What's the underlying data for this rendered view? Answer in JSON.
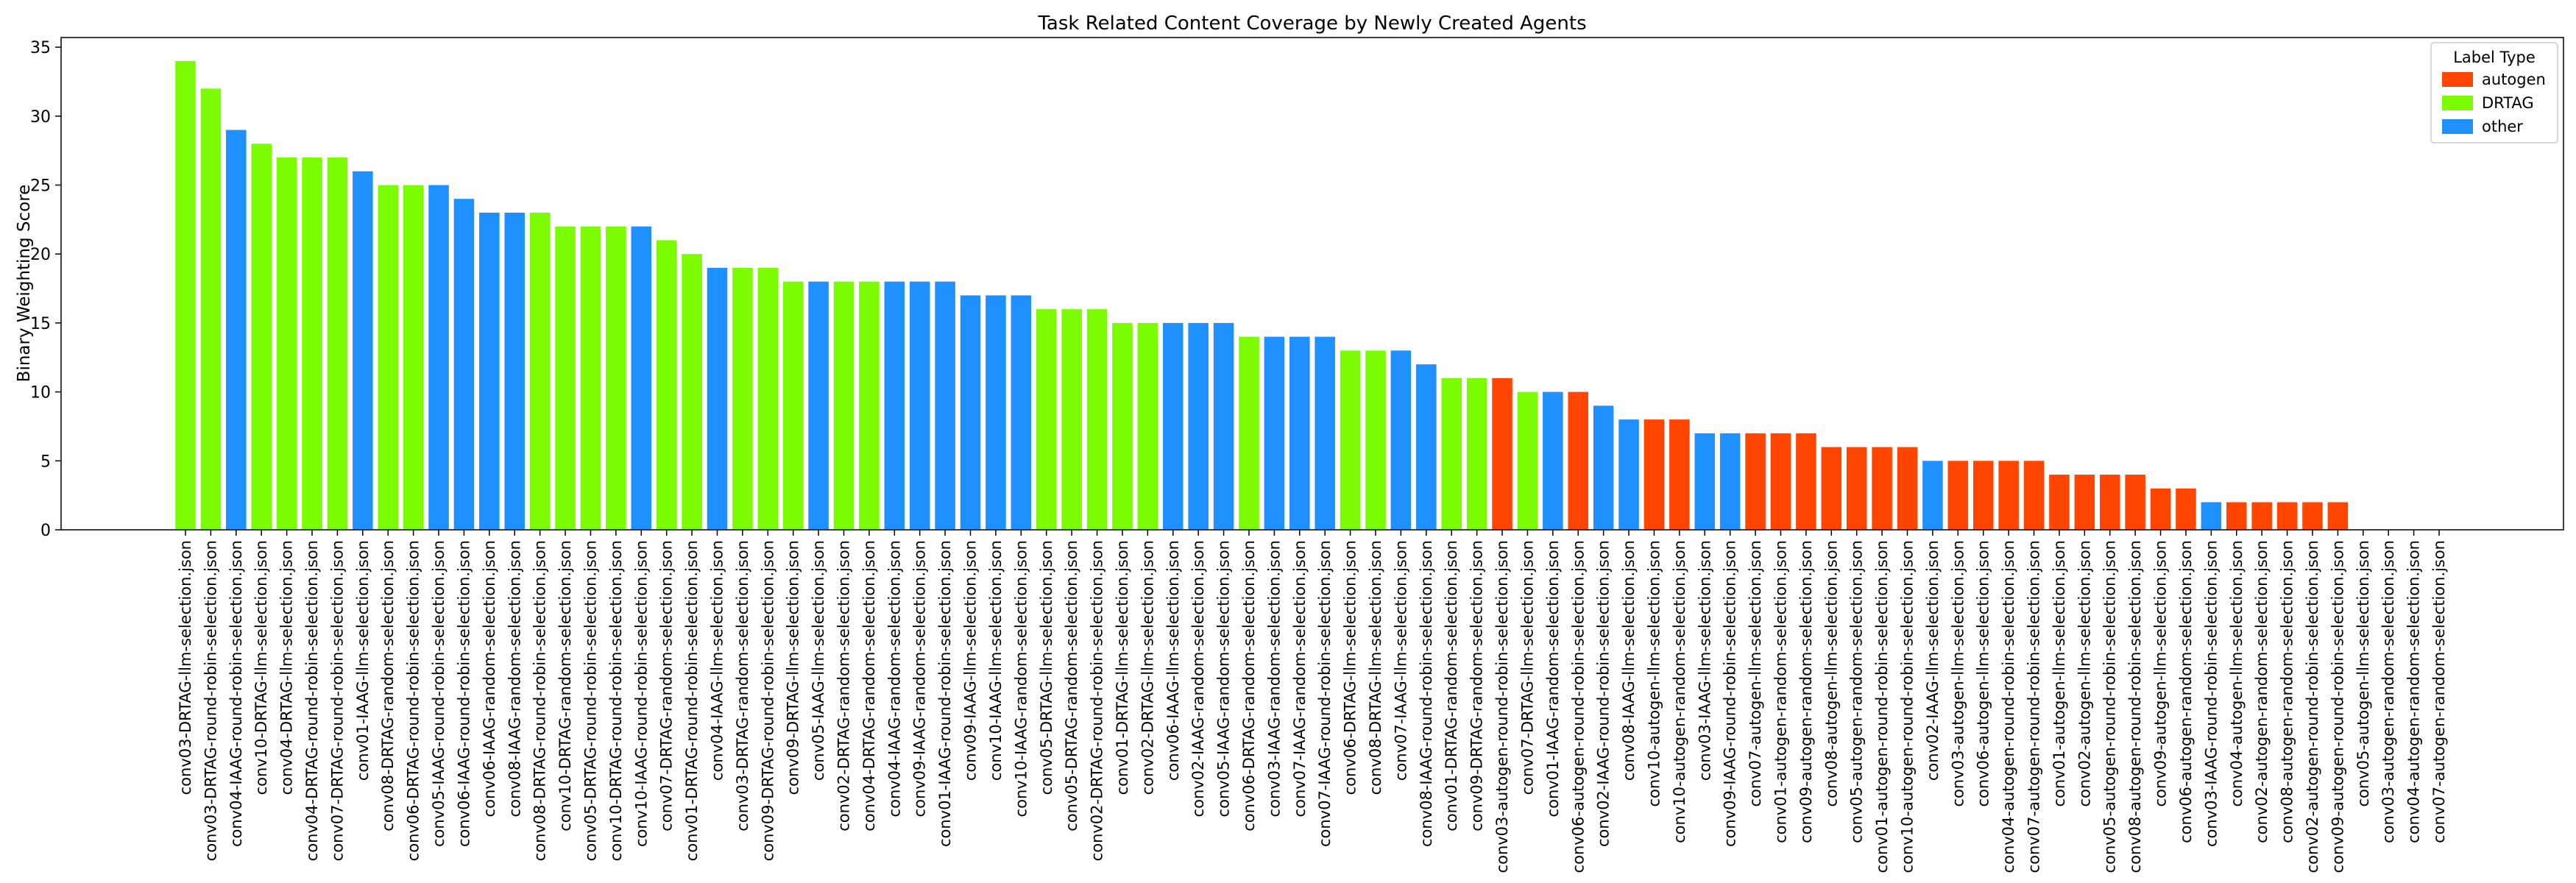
{
  "chart_data": {
    "type": "bar",
    "title": "Task Related Content Coverage by Newly Created Agents",
    "xlabel": "",
    "ylabel": "Binary Weighting Score",
    "ylim": [
      0,
      35.7
    ],
    "yticks": [
      0,
      5,
      10,
      15,
      20,
      25,
      30,
      35
    ],
    "grid": false,
    "legend": {
      "title": "Label Type",
      "placement": "top-right",
      "entries": [
        {
          "label": "autogen",
          "color": "#ff4500"
        },
        {
          "label": "DRTAG",
          "color": "#7cfc00"
        },
        {
          "label": "other",
          "color": "#1e90ff"
        }
      ]
    },
    "colors": {
      "autogen": "#ff4500",
      "DRTAG": "#7cfc00",
      "other": "#1e90ff"
    },
    "categories": [
      "conv03-DRTAG-llm-selection.json",
      "conv03-DRTAG-round-robin-selection.json",
      "conv04-IAAG-round-robin-selection.json",
      "conv10-DRTAG-llm-selection.json",
      "conv04-DRTAG-llm-selection.json",
      "conv04-DRTAG-round-robin-selection.json",
      "conv07-DRTAG-round-robin-selection.json",
      "conv01-IAAG-llm-selection.json",
      "conv08-DRTAG-random-selection.json",
      "conv06-DRTAG-round-robin-selection.json",
      "conv05-IAAG-round-robin-selection.json",
      "conv06-IAAG-round-robin-selection.json",
      "conv06-IAAG-random-selection.json",
      "conv08-IAAG-random-selection.json",
      "conv08-DRTAG-round-robin-selection.json",
      "conv10-DRTAG-random-selection.json",
      "conv05-DRTAG-round-robin-selection.json",
      "conv10-DRTAG-round-robin-selection.json",
      "conv10-IAAG-round-robin-selection.json",
      "conv07-DRTAG-random-selection.json",
      "conv01-DRTAG-round-robin-selection.json",
      "conv04-IAAG-llm-selection.json",
      "conv03-DRTAG-random-selection.json",
      "conv09-DRTAG-round-robin-selection.json",
      "conv09-DRTAG-llm-selection.json",
      "conv05-IAAG-llm-selection.json",
      "conv02-DRTAG-random-selection.json",
      "conv04-DRTAG-random-selection.json",
      "conv04-IAAG-random-selection.json",
      "conv09-IAAG-random-selection.json",
      "conv01-IAAG-round-robin-selection.json",
      "conv09-IAAG-llm-selection.json",
      "conv10-IAAG-llm-selection.json",
      "conv10-IAAG-random-selection.json",
      "conv05-DRTAG-llm-selection.json",
      "conv05-DRTAG-random-selection.json",
      "conv02-DRTAG-round-robin-selection.json",
      "conv01-DRTAG-llm-selection.json",
      "conv02-DRTAG-llm-selection.json",
      "conv06-IAAG-llm-selection.json",
      "conv02-IAAG-random-selection.json",
      "conv05-IAAG-random-selection.json",
      "conv06-DRTAG-random-selection.json",
      "conv03-IAAG-random-selection.json",
      "conv07-IAAG-random-selection.json",
      "conv07-IAAG-round-robin-selection.json",
      "conv06-DRTAG-llm-selection.json",
      "conv08-DRTAG-llm-selection.json",
      "conv07-IAAG-llm-selection.json",
      "conv08-IAAG-round-robin-selection.json",
      "conv01-DRTAG-random-selection.json",
      "conv09-DRTAG-random-selection.json",
      "conv03-autogen-round-robin-selection.json",
      "conv07-DRTAG-llm-selection.json",
      "conv01-IAAG-random-selection.json",
      "conv06-autogen-round-robin-selection.json",
      "conv02-IAAG-round-robin-selection.json",
      "conv08-IAAG-llm-selection.json",
      "conv10-autogen-llm-selection.json",
      "conv10-autogen-random-selection.json",
      "conv03-IAAG-llm-selection.json",
      "conv09-IAAG-round-robin-selection.json",
      "conv07-autogen-llm-selection.json",
      "conv01-autogen-random-selection.json",
      "conv09-autogen-random-selection.json",
      "conv08-autogen-llm-selection.json",
      "conv05-autogen-random-selection.json",
      "conv01-autogen-round-robin-selection.json",
      "conv10-autogen-round-robin-selection.json",
      "conv02-IAAG-llm-selection.json",
      "conv03-autogen-llm-selection.json",
      "conv06-autogen-llm-selection.json",
      "conv04-autogen-round-robin-selection.json",
      "conv07-autogen-round-robin-selection.json",
      "conv01-autogen-llm-selection.json",
      "conv02-autogen-llm-selection.json",
      "conv05-autogen-round-robin-selection.json",
      "conv08-autogen-round-robin-selection.json",
      "conv09-autogen-llm-selection.json",
      "conv06-autogen-random-selection.json",
      "conv03-IAAG-round-robin-selection.json",
      "conv04-autogen-llm-selection.json",
      "conv02-autogen-random-selection.json",
      "conv08-autogen-random-selection.json",
      "conv02-autogen-round-robin-selection.json",
      "conv09-autogen-round-robin-selection.json",
      "conv05-autogen-llm-selection.json",
      "conv03-autogen-random-selection.json",
      "conv04-autogen-random-selection.json",
      "conv07-autogen-random-selection.json"
    ],
    "values": [
      34,
      32,
      29,
      28,
      27,
      27,
      27,
      26,
      25,
      25,
      25,
      24,
      23,
      23,
      23,
      22,
      22,
      22,
      22,
      21,
      20,
      19,
      19,
      19,
      18,
      18,
      18,
      18,
      18,
      18,
      18,
      17,
      17,
      17,
      16,
      16,
      16,
      15,
      15,
      15,
      15,
      15,
      14,
      14,
      14,
      14,
      13,
      13,
      13,
      12,
      11,
      11,
      11,
      10,
      10,
      10,
      9,
      8,
      8,
      8,
      7,
      7,
      7,
      7,
      7,
      6,
      6,
      6,
      6,
      5,
      5,
      5,
      5,
      5,
      4,
      4,
      4,
      4,
      3,
      3,
      2,
      2,
      2,
      2,
      2,
      2,
      0,
      0,
      0,
      0
    ],
    "labels": [
      "DRTAG",
      "DRTAG",
      "other",
      "DRTAG",
      "DRTAG",
      "DRTAG",
      "DRTAG",
      "other",
      "DRTAG",
      "DRTAG",
      "other",
      "other",
      "other",
      "other",
      "DRTAG",
      "DRTAG",
      "DRTAG",
      "DRTAG",
      "other",
      "DRTAG",
      "DRTAG",
      "other",
      "DRTAG",
      "DRTAG",
      "DRTAG",
      "other",
      "DRTAG",
      "DRTAG",
      "other",
      "other",
      "other",
      "other",
      "other",
      "other",
      "DRTAG",
      "DRTAG",
      "DRTAG",
      "DRTAG",
      "DRTAG",
      "other",
      "other",
      "other",
      "DRTAG",
      "other",
      "other",
      "other",
      "DRTAG",
      "DRTAG",
      "other",
      "other",
      "DRTAG",
      "DRTAG",
      "autogen",
      "DRTAG",
      "other",
      "autogen",
      "other",
      "other",
      "autogen",
      "autogen",
      "other",
      "other",
      "autogen",
      "autogen",
      "autogen",
      "autogen",
      "autogen",
      "autogen",
      "autogen",
      "other",
      "autogen",
      "autogen",
      "autogen",
      "autogen",
      "autogen",
      "autogen",
      "autogen",
      "autogen",
      "autogen",
      "autogen",
      "other",
      "autogen",
      "autogen",
      "autogen",
      "autogen",
      "autogen",
      "autogen",
      "autogen",
      "autogen",
      "autogen"
    ]
  }
}
